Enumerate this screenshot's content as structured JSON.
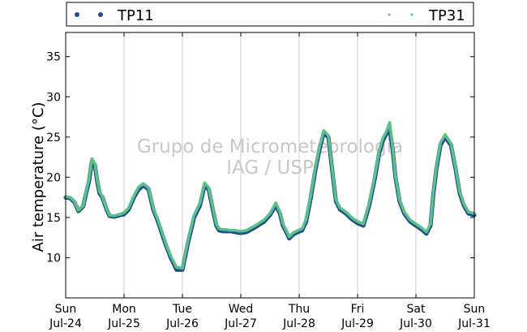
{
  "chart_data": {
    "type": "scatter",
    "ylabel": "Air temperature (°C)",
    "xlabel": "",
    "ylim": [
      5,
      38
    ],
    "y_ticks": [
      10,
      15,
      20,
      25,
      30,
      35
    ],
    "x_unit": "days since Sun Jul-24 00:00",
    "xlim": [
      0,
      7
    ],
    "x_ticks": [
      {
        "day": "Sun",
        "date": "Jul-24",
        "x": 0
      },
      {
        "day": "Mon",
        "date": "Jul-25",
        "x": 1
      },
      {
        "day": "Tue",
        "date": "Jul-26",
        "x": 2
      },
      {
        "day": "Wed",
        "date": "Jul-27",
        "x": 3
      },
      {
        "day": "Thu",
        "date": "Jul-28",
        "x": 4
      },
      {
        "day": "Fri",
        "date": "Jul-29",
        "x": 5
      },
      {
        "day": "Sat",
        "date": "Jul-30",
        "x": 6
      },
      {
        "day": "Sun",
        "date": "Jul-31",
        "x": 7
      }
    ],
    "grid": {
      "vertical": true,
      "horizontal": false
    },
    "legend_position": "top",
    "watermark": [
      "Grupo de Micrometeorologia",
      "IAG / USP"
    ],
    "series": [
      {
        "name": "TP11",
        "color": "#1f4e8c",
        "marker": "dot",
        "x": [
          0,
          0.08,
          0.15,
          0.22,
          0.3,
          0.35,
          0.4,
          0.45,
          0.5,
          0.54,
          0.58,
          0.63,
          0.7,
          0.75,
          0.83,
          0.88,
          0.93,
          1.0,
          1.08,
          1.17,
          1.25,
          1.33,
          1.42,
          1.5,
          1.58,
          1.65,
          1.72,
          1.8,
          1.9,
          2.0,
          2.1,
          2.2,
          2.3,
          2.38,
          2.45,
          2.52,
          2.58,
          2.63,
          2.7,
          2.75,
          2.82,
          2.9,
          2.96,
          3.02,
          3.1,
          3.25,
          3.4,
          3.5,
          3.6,
          3.67,
          3.72,
          3.78,
          3.83,
          3.9,
          3.98,
          4.05,
          4.12,
          4.2,
          4.28,
          4.35,
          4.42,
          4.5,
          4.58,
          4.63,
          4.7,
          4.8,
          4.9,
          5.0,
          5.1,
          5.2,
          5.3,
          5.37,
          5.43,
          5.5,
          5.55,
          5.6,
          5.65,
          5.72,
          5.8,
          5.9,
          6.0,
          6.1,
          6.18,
          6.25,
          6.3,
          6.35,
          6.42,
          6.5,
          6.6,
          6.68,
          6.75,
          6.82,
          6.9,
          7.0
        ],
        "y": [
          17.5,
          17.4,
          16.9,
          15.8,
          16.4,
          18.0,
          19.5,
          22.0,
          21.5,
          19.5,
          18.0,
          17.5,
          16.0,
          15.2,
          15.1,
          15.2,
          15.3,
          15.4,
          16.0,
          17.5,
          18.5,
          19.0,
          18.5,
          16.0,
          14.5,
          13.0,
          11.5,
          10.0,
          8.5,
          8.5,
          12.0,
          15.0,
          16.5,
          19.0,
          18.5,
          16.0,
          14.0,
          13.4,
          13.3,
          13.3,
          13.3,
          13.2,
          13.1,
          13.1,
          13.2,
          13.8,
          14.5,
          15.3,
          16.5,
          15.5,
          14.0,
          13.2,
          12.4,
          12.9,
          13.2,
          13.4,
          14.5,
          17.5,
          21.0,
          23.5,
          25.5,
          25.0,
          20.0,
          17.0,
          16.0,
          15.5,
          14.8,
          14.3,
          14.0,
          16.5,
          20.0,
          23.0,
          24.5,
          25.5,
          26.0,
          23.5,
          20.0,
          17.0,
          15.5,
          14.5,
          14.0,
          13.5,
          13.0,
          14.0,
          18.0,
          21.0,
          24.0,
          25.0,
          24.0,
          21.0,
          18.0,
          16.5,
          15.5,
          15.3
        ]
      },
      {
        "name": "TP31",
        "color": "#5cc08a",
        "marker": "dot",
        "x": [
          0,
          0.08,
          0.15,
          0.22,
          0.3,
          0.35,
          0.4,
          0.45,
          0.5,
          0.54,
          0.58,
          0.63,
          0.7,
          0.75,
          0.83,
          0.88,
          0.93,
          1.0,
          1.08,
          1.17,
          1.25,
          1.33,
          1.42,
          1.5,
          1.58,
          1.65,
          1.72,
          1.8,
          1.9,
          2.0,
          2.1,
          2.2,
          2.3,
          2.38,
          2.45,
          2.52,
          2.58,
          2.63,
          2.7,
          2.75,
          2.82,
          2.9,
          2.96,
          3.02,
          3.1,
          3.25,
          3.4,
          3.5,
          3.6,
          3.67,
          3.72,
          3.78,
          3.83,
          3.9,
          3.98,
          4.05,
          4.12,
          4.2,
          4.28,
          4.35,
          4.42,
          4.5,
          4.58,
          4.63,
          4.7,
          4.8,
          4.9,
          5.0,
          5.1,
          5.2,
          5.3,
          5.37,
          5.43,
          5.5,
          5.55,
          5.6,
          5.65,
          5.72,
          5.8,
          5.9,
          6.0,
          6.1,
          6.18,
          6.25,
          6.3,
          6.35,
          6.42,
          6.5,
          6.6,
          6.68,
          6.75,
          6.82,
          6.9,
          7.0
        ],
        "y": [
          17.6,
          17.5,
          17.0,
          15.9,
          16.5,
          18.2,
          19.8,
          22.3,
          21.7,
          19.7,
          18.2,
          17.6,
          16.1,
          15.3,
          15.2,
          15.3,
          15.4,
          15.6,
          16.2,
          17.7,
          18.8,
          19.2,
          18.7,
          16.2,
          14.7,
          13.2,
          11.7,
          10.2,
          8.8,
          8.7,
          12.3,
          15.3,
          16.8,
          19.3,
          18.7,
          16.2,
          14.2,
          13.6,
          13.5,
          13.5,
          13.4,
          13.4,
          13.3,
          13.3,
          13.4,
          14.0,
          14.7,
          15.5,
          16.8,
          15.7,
          14.2,
          13.4,
          12.6,
          13.1,
          13.4,
          13.6,
          14.8,
          17.8,
          21.3,
          23.8,
          25.8,
          25.2,
          20.2,
          17.2,
          16.2,
          15.7,
          15.0,
          14.5,
          14.2,
          16.8,
          20.3,
          23.3,
          24.8,
          25.8,
          26.8,
          23.8,
          20.2,
          17.2,
          15.7,
          14.7,
          14.2,
          13.7,
          13.2,
          14.2,
          18.3,
          21.3,
          24.3,
          25.3,
          24.2,
          21.2,
          18.2,
          16.7,
          15.7,
          15.5
        ]
      }
    ]
  }
}
